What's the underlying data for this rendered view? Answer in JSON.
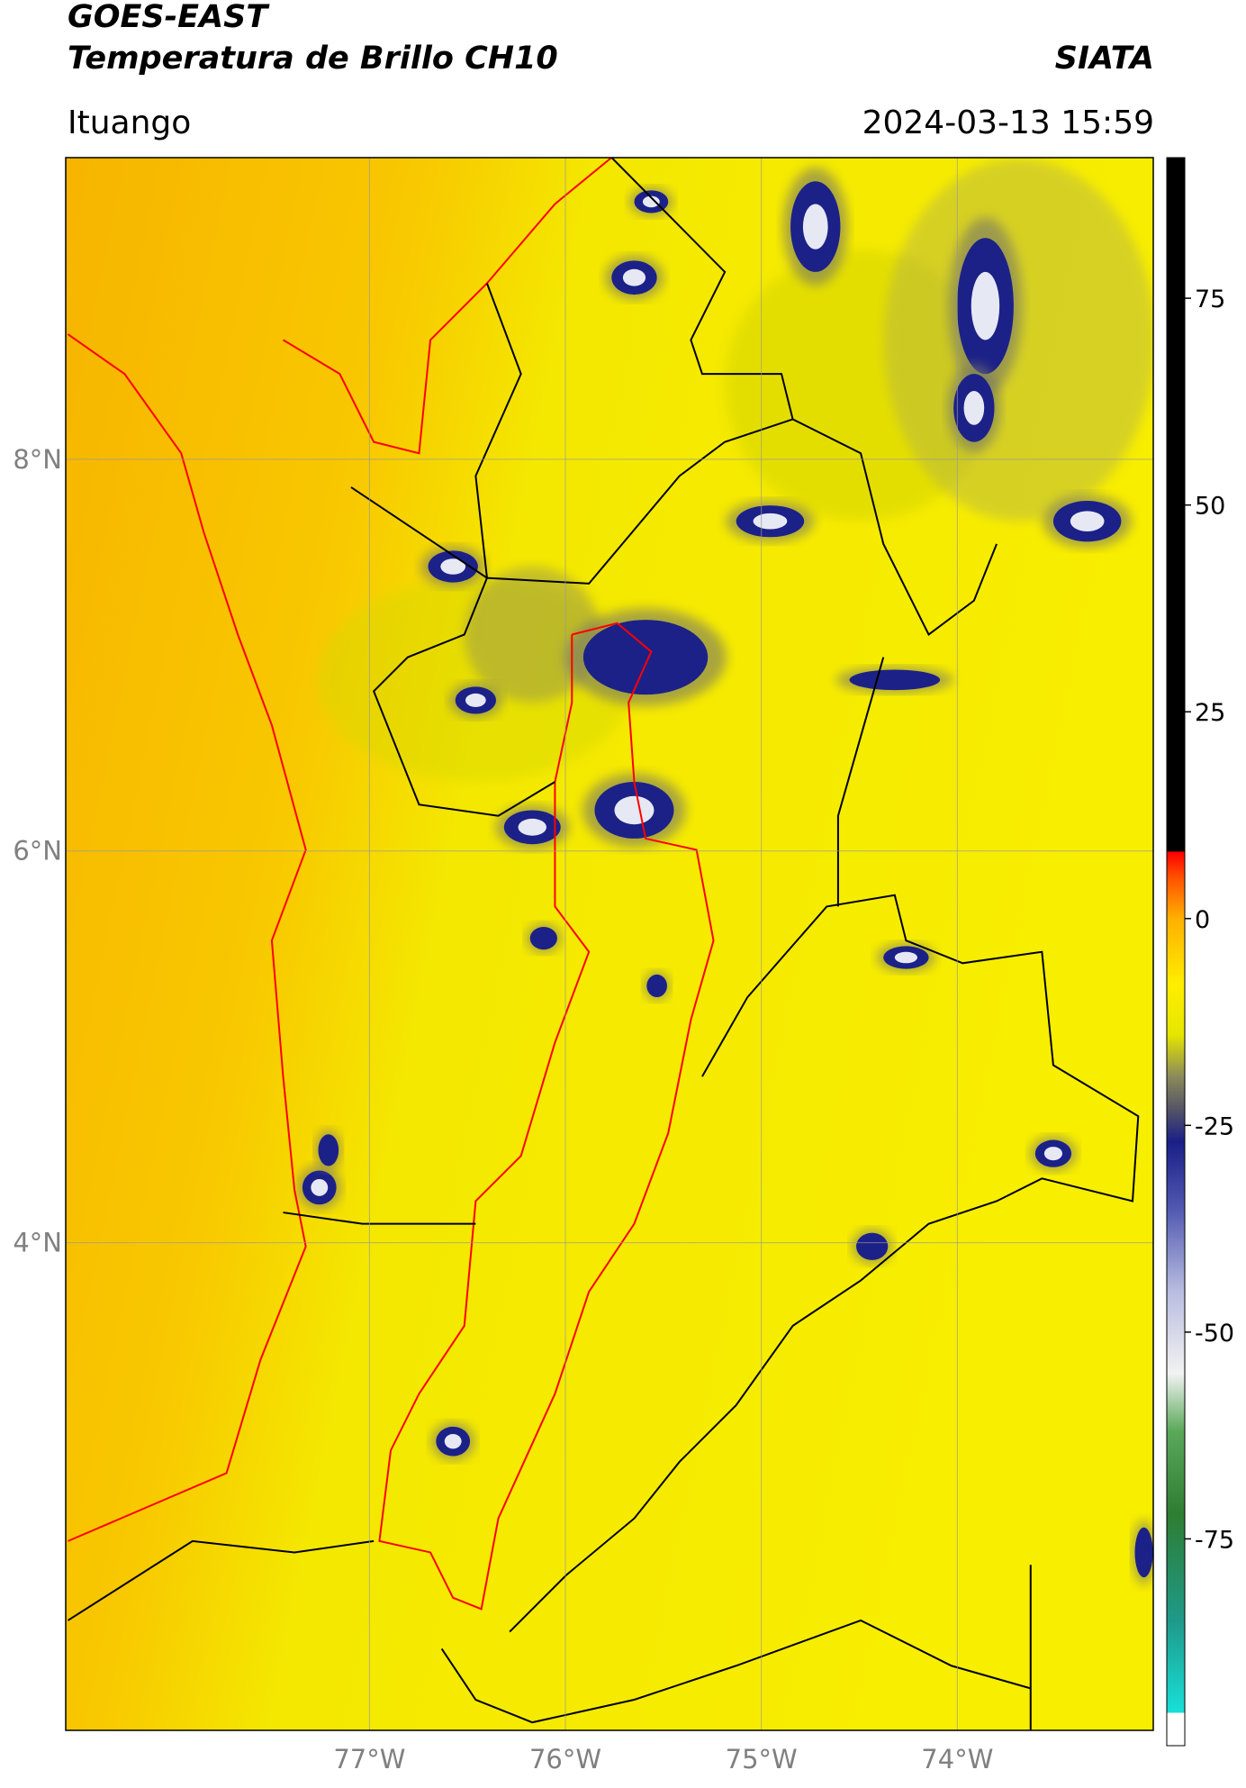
{
  "header": {
    "title": "GOES-EAST",
    "subtitle": "Temperatura de Brillo CH10",
    "brand": "SIATA",
    "location": "Ituango",
    "datetime": "2024-03-13 15:59"
  },
  "map": {
    "xlim": [
      -78.55,
      -73.0
    ],
    "ylim": [
      1.51,
      9.54
    ],
    "xticks": [
      {
        "value": -77,
        "label": "77°W"
      },
      {
        "value": -76,
        "label": "76°W"
      },
      {
        "value": -75,
        "label": "75°W"
      },
      {
        "value": -74,
        "label": "74°W"
      }
    ],
    "yticks": [
      {
        "value": 8,
        "label": "8°N"
      },
      {
        "value": 6,
        "label": "6°N"
      },
      {
        "value": 4,
        "label": "4°N"
      }
    ],
    "grid": true
  },
  "colorbar": {
    "lim": [
      -100,
      92
    ],
    "ticks": [
      75,
      50,
      25,
      0,
      -25,
      -50,
      -75
    ],
    "colorscale": [
      [
        -100,
        "#ffffff"
      ],
      [
        -96,
        "#ffffff"
      ],
      [
        -96,
        "#18e0d8"
      ],
      [
        -85,
        "#1f9a8a"
      ],
      [
        -72,
        "#2e7d32"
      ],
      [
        -62,
        "#5aa85a"
      ],
      [
        -55,
        "#f2f2f2"
      ],
      [
        -45,
        "#b8bce0"
      ],
      [
        -35,
        "#5058b0"
      ],
      [
        -27,
        "#1a1f86"
      ],
      [
        -23,
        "#555566"
      ],
      [
        -19,
        "#8c8c5a"
      ],
      [
        -14,
        "#e6e600"
      ],
      [
        -8,
        "#ffee00"
      ],
      [
        0,
        "#ffb000"
      ],
      [
        5,
        "#ff5000"
      ],
      [
        8,
        "#ff0000"
      ],
      [
        8.2,
        "#000000"
      ],
      [
        92,
        "#000000"
      ]
    ]
  }
}
